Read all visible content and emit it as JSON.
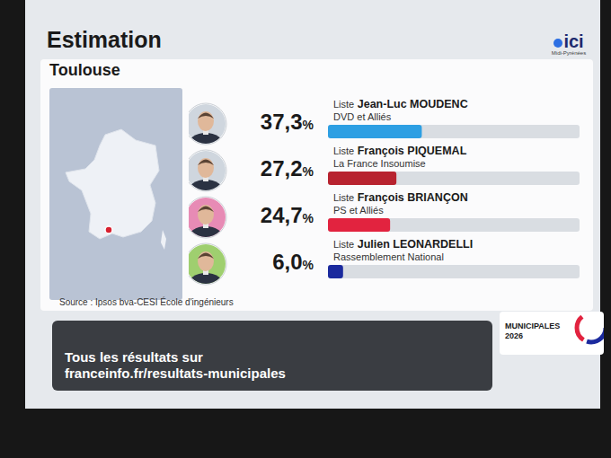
{
  "chart_data": {
    "type": "bar",
    "orientation": "horizontal",
    "title": "Estimation",
    "subtitle": "Toulouse",
    "categories": [
      "Liste Jean-Luc MOUDENC",
      "Liste François PIQUEMAL",
      "Liste François BRIANÇON",
      "Liste Julien LEONARDELLI"
    ],
    "parties": [
      "DVD et Alliés",
      "La France Insoumise",
      "PS et Alliés",
      "Rassemblement National"
    ],
    "values": [
      37.3,
      27.2,
      24.7,
      6.0
    ],
    "value_labels": [
      "37,3%",
      "27,2%",
      "24,7%",
      "6,0%"
    ],
    "colors": [
      "#2d9fe3",
      "#b8232f",
      "#e2233f",
      "#1b2a9e"
    ],
    "xlim": [
      0,
      100
    ],
    "tick_labels": false,
    "grid": false,
    "data_labels": true,
    "source": "Source : Ipsos bva-CESI École d'ingénieurs",
    "logo": {
      "name": "ici",
      "region": "Midi-Pyrénées"
    },
    "footer": {
      "line1": "Tous les résultats sur",
      "line2": "franceinfo.fr/resultats-municipales"
    },
    "badge": {
      "line1": "MUNICIPALES",
      "line2": "2026"
    }
  }
}
